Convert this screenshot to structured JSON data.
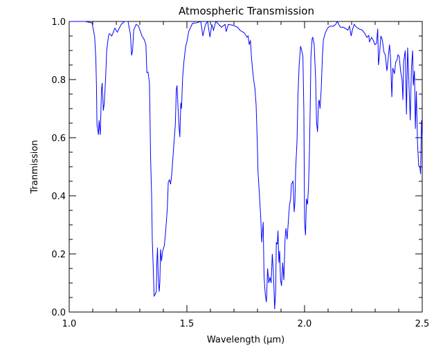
{
  "chart_data": {
    "type": "line",
    "title": "Atmospheric Transmission",
    "xlabel": "Wavelength (μm)",
    "ylabel": "Tranmission",
    "xlim": [
      1.0,
      2.5
    ],
    "ylim": [
      0.0,
      1.0
    ],
    "x_ticks": [
      "1.0",
      "1.5",
      "2.0",
      "2.5"
    ],
    "x_tick_values": [
      1.0,
      1.5,
      2.0,
      2.5
    ],
    "x_minor_step": 0.1,
    "y_ticks": [
      "0.0",
      "0.2",
      "0.4",
      "0.6",
      "0.8",
      "1.0"
    ],
    "y_tick_values": [
      0.0,
      0.2,
      0.4,
      0.6,
      0.8,
      1.0
    ],
    "y_minor_step": 0.05,
    "grid": false,
    "line_color": "#0000ff",
    "series": [
      {
        "name": "Transmission",
        "x": [
          1.0,
          1.068,
          1.097,
          1.108,
          1.113,
          1.116,
          1.118,
          1.124,
          1.127,
          1.132,
          1.137,
          1.14,
          1.145,
          1.149,
          1.155,
          1.159,
          1.167,
          1.171,
          1.181,
          1.194,
          1.204,
          1.221,
          1.235,
          1.25,
          1.26,
          1.265,
          1.269,
          1.274,
          1.284,
          1.294,
          1.309,
          1.319,
          1.326,
          1.33,
          1.335,
          1.341,
          1.343,
          1.346,
          1.35,
          1.353,
          1.358,
          1.361,
          1.365,
          1.37,
          1.372,
          1.375,
          1.378,
          1.382,
          1.385,
          1.388,
          1.392,
          1.397,
          1.404,
          1.41,
          1.417,
          1.421,
          1.426,
          1.431,
          1.436,
          1.441,
          1.446,
          1.451,
          1.455,
          1.458,
          1.461,
          1.466,
          1.47,
          1.474,
          1.477,
          1.482,
          1.488,
          1.495,
          1.5,
          1.508,
          1.524,
          1.539,
          1.559,
          1.568,
          1.579,
          1.588,
          1.598,
          1.606,
          1.613,
          1.623,
          1.647,
          1.662,
          1.667,
          1.676,
          1.696,
          1.716,
          1.725,
          1.745,
          1.755,
          1.76,
          1.765,
          1.77,
          1.774,
          1.779,
          1.784,
          1.789,
          1.794,
          1.799,
          1.802,
          1.809,
          1.814,
          1.818,
          1.824,
          1.828,
          1.833,
          1.838,
          1.843,
          1.848,
          1.853,
          1.858,
          1.863,
          1.868,
          1.873,
          1.877,
          1.88,
          1.884,
          1.887,
          1.891,
          1.894,
          1.898,
          1.902,
          1.907,
          1.912,
          1.917,
          1.921,
          1.926,
          1.931,
          1.936,
          1.941,
          1.944,
          1.951,
          1.956,
          1.959,
          1.962,
          1.968,
          1.972,
          1.977,
          1.983,
          1.988,
          1.993,
          1.997,
          2.0,
          2.004,
          2.008,
          2.013,
          2.017,
          2.021,
          2.024,
          2.027,
          2.032,
          2.035,
          2.041,
          2.047,
          2.051,
          2.055,
          2.059,
          2.062,
          2.066,
          2.071,
          2.076,
          2.08,
          2.088,
          2.098,
          2.108,
          2.123,
          2.132,
          2.139,
          2.152,
          2.166,
          2.184,
          2.191,
          2.198,
          2.203,
          2.211,
          2.221,
          2.23,
          2.245,
          2.255,
          2.265,
          2.273,
          2.276,
          2.284,
          2.292,
          2.299,
          2.306,
          2.311,
          2.314,
          2.318,
          2.324,
          2.331,
          2.337,
          2.343,
          2.35,
          2.355,
          2.361,
          2.365,
          2.371,
          2.375,
          2.382,
          2.387,
          2.392,
          2.397,
          2.402,
          2.408,
          2.414,
          2.418,
          2.421,
          2.428,
          2.433,
          2.438,
          2.443,
          2.449,
          2.454,
          2.459,
          2.462,
          2.467,
          2.471,
          2.475,
          2.48,
          2.485,
          2.49,
          2.493,
          2.497,
          2.5
        ],
        "y": [
          1.0,
          1.0,
          0.995,
          0.948,
          0.876,
          0.776,
          0.645,
          0.61,
          0.66,
          0.61,
          0.764,
          0.788,
          0.693,
          0.72,
          0.81,
          0.9,
          0.951,
          0.958,
          0.95,
          0.977,
          0.963,
          0.99,
          1.0,
          1.0,
          0.955,
          0.883,
          0.9,
          0.97,
          0.99,
          0.985,
          0.95,
          0.937,
          0.92,
          0.824,
          0.826,
          0.788,
          0.686,
          0.526,
          0.407,
          0.248,
          0.129,
          0.055,
          0.06,
          0.07,
          0.162,
          0.222,
          0.13,
          0.07,
          0.1,
          0.216,
          0.175,
          0.21,
          0.228,
          0.28,
          0.36,
          0.447,
          0.455,
          0.44,
          0.476,
          0.534,
          0.59,
          0.645,
          0.764,
          0.78,
          0.73,
          0.645,
          0.602,
          0.72,
          0.7,
          0.81,
          0.867,
          0.915,
          0.93,
          0.966,
          0.994,
          0.995,
          1.0,
          0.95,
          0.99,
          1.0,
          0.946,
          0.99,
          0.97,
          1.0,
          0.98,
          0.99,
          0.965,
          0.99,
          0.987,
          0.98,
          0.97,
          0.96,
          0.946,
          0.95,
          0.92,
          0.935,
          0.88,
          0.834,
          0.796,
          0.77,
          0.713,
          0.586,
          0.486,
          0.391,
          0.32,
          0.24,
          0.31,
          0.121,
          0.062,
          0.034,
          0.15,
          0.1,
          0.12,
          0.1,
          0.2,
          0.13,
          0.01,
          0.07,
          0.24,
          0.233,
          0.28,
          0.17,
          0.21,
          0.11,
          0.09,
          0.17,
          0.11,
          0.25,
          0.288,
          0.25,
          0.31,
          0.367,
          0.39,
          0.44,
          0.45,
          0.344,
          0.38,
          0.49,
          0.59,
          0.748,
          0.85,
          0.915,
          0.9,
          0.88,
          0.69,
          0.312,
          0.264,
          0.39,
          0.37,
          0.44,
          0.56,
          0.71,
          0.88,
          0.94,
          0.945,
          0.92,
          0.8,
          0.653,
          0.62,
          0.72,
          0.73,
          0.7,
          0.77,
          0.88,
          0.937,
          0.96,
          0.977,
          0.984,
          0.984,
          0.99,
          1.0,
          0.98,
          0.98,
          0.97,
          0.984,
          0.95,
          0.97,
          0.99,
          0.98,
          0.975,
          0.97,
          0.96,
          0.945,
          0.952,
          0.93,
          0.945,
          0.935,
          0.92,
          0.925,
          0.975,
          0.85,
          0.88,
          0.95,
          0.935,
          0.895,
          0.885,
          0.83,
          0.87,
          0.92,
          0.88,
          0.74,
          0.84,
          0.82,
          0.86,
          0.865,
          0.885,
          0.88,
          0.83,
          0.8,
          0.73,
          0.86,
          0.9,
          0.68,
          0.91,
          0.8,
          0.66,
          0.84,
          0.9,
          0.78,
          0.83,
          0.63,
          0.76,
          0.58,
          0.503,
          0.5,
          0.475,
          0.66,
          0.6
        ]
      }
    ]
  }
}
